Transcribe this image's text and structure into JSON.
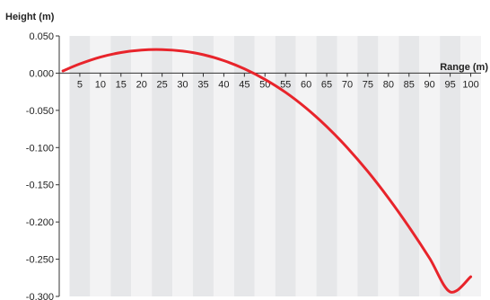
{
  "chart_data": {
    "type": "line",
    "title": "",
    "ylabel": "Height (m)",
    "xlabel": "Range (m)",
    "xlim": [
      0,
      102.5
    ],
    "ylim": [
      -0.3,
      0.05
    ],
    "xticks": [
      5,
      10,
      15,
      20,
      25,
      30,
      35,
      40,
      45,
      50,
      55,
      60,
      65,
      70,
      75,
      80,
      85,
      90,
      95,
      100
    ],
    "yticks": [
      0.05,
      0.0,
      -0.05,
      -0.1,
      -0.15,
      -0.2,
      -0.25,
      -0.3
    ],
    "ytick_labels": [
      "0.050",
      "0.000",
      "-0.050",
      "-0.100",
      "-0.150",
      "-0.200",
      "-0.250",
      "-0.300"
    ],
    "grid": "alternating vertical bands",
    "band_colors": [
      "#e6e7e9",
      "#f3f3f4"
    ],
    "series": [
      {
        "color": "#e8242b",
        "x": [
          0.9,
          5,
          10,
          15,
          20,
          25,
          30,
          35,
          40,
          45,
          50,
          55,
          60,
          65,
          70,
          75,
          80,
          85,
          90,
          95,
          100
        ],
        "y": [
          0.003,
          0.0124,
          0.0216,
          0.0277,
          0.031,
          0.0316,
          0.0296,
          0.0248,
          0.0168,
          0.0058,
          -0.0084,
          -0.0258,
          -0.047,
          -0.0718,
          -0.1002,
          -0.1322,
          -0.1678,
          -0.2067,
          -0.2487,
          -0.2939,
          -0.2736
        ]
      }
    ]
  }
}
